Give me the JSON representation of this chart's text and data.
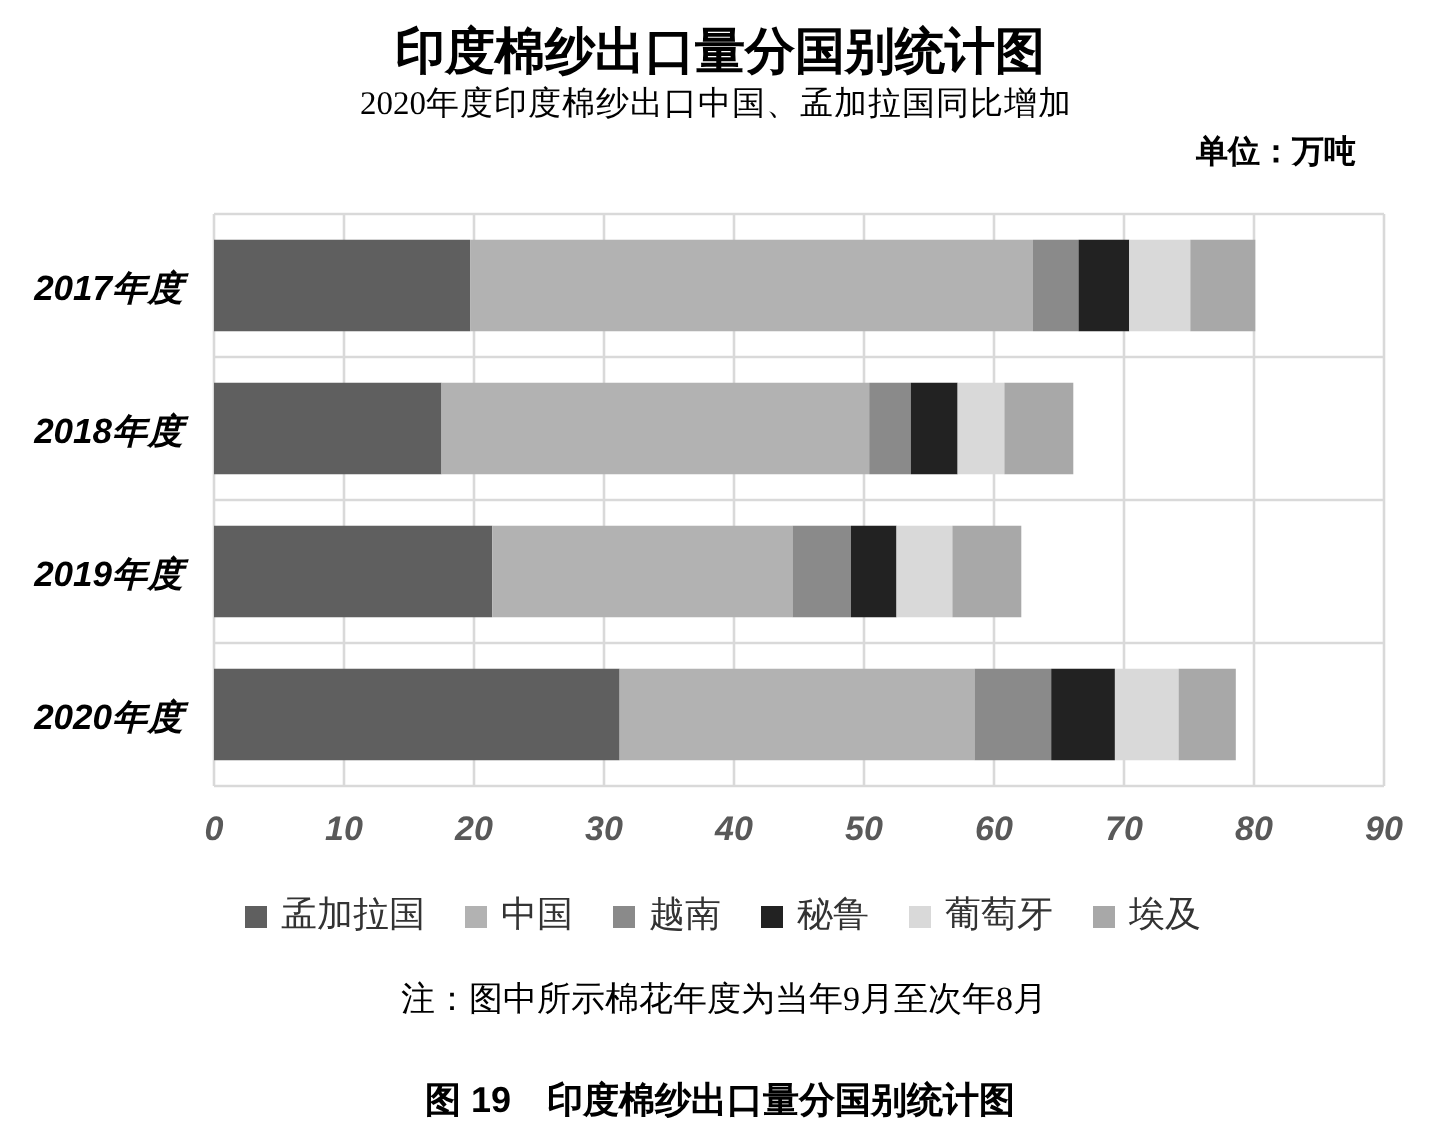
{
  "chart_data": {
    "type": "bar",
    "orientation": "horizontal",
    "stacked": true,
    "title": "印度棉纱出口量分国别统计图",
    "subtitle": "2020年度印度棉纱出口中国、孟加拉国同比增加",
    "categories": [
      "2017年度",
      "2018年度",
      "2019年度",
      "2020年度"
    ],
    "series": [
      {
        "name": "孟加拉国",
        "color": "#5f5f5f",
        "values": [
          19.7,
          17.5,
          21.4,
          31.2
        ]
      },
      {
        "name": "中国",
        "color": "#b2b2b2",
        "values": [
          43.3,
          32.9,
          23.1,
          27.3
        ]
      },
      {
        "name": "越南",
        "color": "#8a8a8a",
        "values": [
          3.5,
          3.2,
          4.5,
          5.9
        ]
      },
      {
        "name": "秘鲁",
        "color": "#222222",
        "values": [
          3.9,
          3.6,
          3.5,
          4.9
        ]
      },
      {
        "name": "葡萄牙",
        "color": "#d9d9d9",
        "values": [
          4.7,
          3.6,
          4.3,
          4.9
        ]
      },
      {
        "name": "埃及",
        "color": "#a8a8a8",
        "values": [
          5.0,
          5.3,
          5.3,
          4.4
        ]
      }
    ],
    "xlim": [
      0,
      90
    ],
    "xticks": [
      0,
      10,
      20,
      30,
      40,
      50,
      60,
      70,
      80,
      90
    ],
    "grid": true,
    "legend": "bottom",
    "annotations": [
      "单位：万吨",
      "注：图中所示棉花年度为当年9月至次年8月",
      "图 19　印度棉纱出口量分国别统计图"
    ]
  }
}
